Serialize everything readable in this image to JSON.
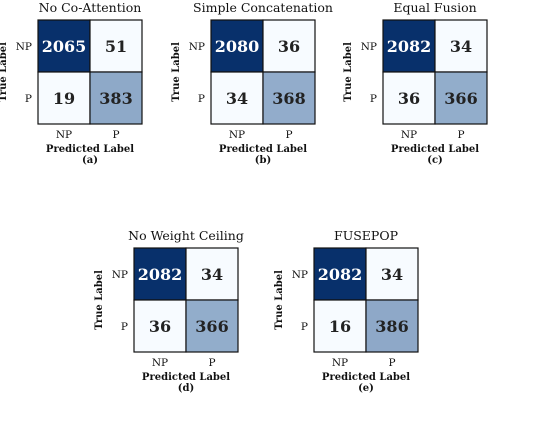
{
  "chart_data": [
    {
      "type": "heatmap",
      "title": "No Co-Attention",
      "caption": "(a)",
      "xlabel": "Predicted Label",
      "ylabel": "True Label",
      "x_categories": [
        "NP",
        "P"
      ],
      "y_categories": [
        "NP",
        "P"
      ],
      "values": [
        [
          2065,
          51
        ],
        [
          19,
          383
        ]
      ]
    },
    {
      "type": "heatmap",
      "title": "Simple Concatenation",
      "caption": "(b)",
      "xlabel": "Predicted Label",
      "ylabel": "True Label",
      "x_categories": [
        "NP",
        "P"
      ],
      "y_categories": [
        "NP",
        "P"
      ],
      "values": [
        [
          2080,
          36
        ],
        [
          34,
          368
        ]
      ]
    },
    {
      "type": "heatmap",
      "title": "Equal Fusion",
      "caption": "(c)",
      "xlabel": "Predicted Label",
      "ylabel": "True Label",
      "x_categories": [
        "NP",
        "P"
      ],
      "y_categories": [
        "NP",
        "P"
      ],
      "values": [
        [
          2082,
          34
        ],
        [
          36,
          366
        ]
      ]
    },
    {
      "type": "heatmap",
      "title": "No Weight Ceiling",
      "caption": "(d)",
      "xlabel": "Predicted Label",
      "ylabel": "True Label",
      "x_categories": [
        "NP",
        "P"
      ],
      "y_categories": [
        "NP",
        "P"
      ],
      "values": [
        [
          2082,
          34
        ],
        [
          36,
          366
        ]
      ]
    },
    {
      "type": "heatmap",
      "title": "FUSEPOP",
      "caption": "(e)",
      "xlabel": "Predicted Label",
      "ylabel": "True Label",
      "x_categories": [
        "NP",
        "P"
      ],
      "y_categories": [
        "NP",
        "P"
      ],
      "values": [
        [
          2082,
          34
        ],
        [
          16,
          386
        ]
      ]
    }
  ],
  "colors": {
    "scale": [
      "#f7fbff",
      "#c6dbef",
      "#08306b"
    ],
    "text_dark_bg": "#ffffff",
    "text_light_bg": "#222222"
  }
}
